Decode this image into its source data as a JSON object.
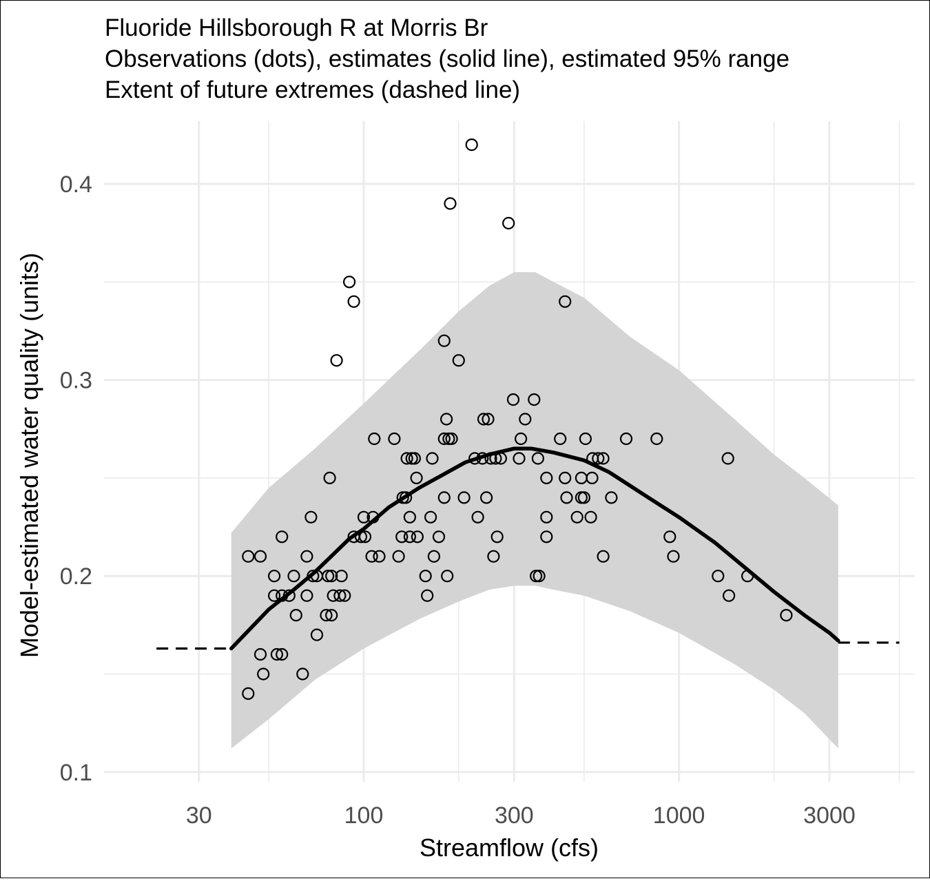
{
  "chart_data": {
    "type": "scatter",
    "title_lines": [
      "Fluoride Hillsborough R at Morris Br",
      "Observations (dots), estimates (solid line), estimated 95% range",
      "Extent of future extremes (dashed line)"
    ],
    "xlabel": "Streamflow (cfs)",
    "ylabel": "Model-estimated water quality (units)",
    "x_scale": "log10",
    "xlim": [
      15,
      5600
    ],
    "ylim": [
      0.095,
      0.432
    ],
    "x_ticks": [
      30,
      100,
      300,
      1000,
      3000
    ],
    "x_tick_labels": [
      "30",
      "100",
      "300",
      "1000",
      "3000"
    ],
    "x_minor_ticks": [
      50,
      200,
      500,
      2000,
      5000
    ],
    "y_ticks": [
      0.1,
      0.2,
      0.3,
      0.4
    ],
    "y_tick_labels": [
      "0.1",
      "0.2",
      "0.3",
      "0.4"
    ],
    "y_minor_ticks": [
      0.15,
      0.25,
      0.35
    ],
    "grid": true,
    "colors": {
      "observation": "#000000",
      "estimate_line": "#000000",
      "band": "#d4d4d4",
      "grid": "#ebebeb"
    },
    "estimate_curve": [
      {
        "x": 38,
        "y": 0.163
      },
      {
        "x": 50,
        "y": 0.183
      },
      {
        "x": 60,
        "y": 0.193
      },
      {
        "x": 70,
        "y": 0.202
      },
      {
        "x": 80,
        "y": 0.211
      },
      {
        "x": 90,
        "y": 0.219
      },
      {
        "x": 100,
        "y": 0.224
      },
      {
        "x": 120,
        "y": 0.235
      },
      {
        "x": 150,
        "y": 0.245
      },
      {
        "x": 180,
        "y": 0.252
      },
      {
        "x": 210,
        "y": 0.258
      },
      {
        "x": 250,
        "y": 0.262
      },
      {
        "x": 300,
        "y": 0.265
      },
      {
        "x": 340,
        "y": 0.265
      },
      {
        "x": 400,
        "y": 0.263
      },
      {
        "x": 500,
        "y": 0.259
      },
      {
        "x": 600,
        "y": 0.253
      },
      {
        "x": 800,
        "y": 0.24
      },
      {
        "x": 1000,
        "y": 0.23
      },
      {
        "x": 1300,
        "y": 0.217
      },
      {
        "x": 1600,
        "y": 0.205
      },
      {
        "x": 2000,
        "y": 0.192
      },
      {
        "x": 2500,
        "y": 0.18
      },
      {
        "x": 3000,
        "y": 0.171
      },
      {
        "x": 3200,
        "y": 0.167
      }
    ],
    "band_upper": [
      {
        "x": 38,
        "y": 0.222
      },
      {
        "x": 50,
        "y": 0.245
      },
      {
        "x": 70,
        "y": 0.265
      },
      {
        "x": 100,
        "y": 0.288
      },
      {
        "x": 150,
        "y": 0.315
      },
      {
        "x": 200,
        "y": 0.335
      },
      {
        "x": 250,
        "y": 0.348
      },
      {
        "x": 300,
        "y": 0.355
      },
      {
        "x": 350,
        "y": 0.355
      },
      {
        "x": 400,
        "y": 0.35
      },
      {
        "x": 500,
        "y": 0.342
      },
      {
        "x": 700,
        "y": 0.322
      },
      {
        "x": 1000,
        "y": 0.305
      },
      {
        "x": 1500,
        "y": 0.28
      },
      {
        "x": 2000,
        "y": 0.262
      },
      {
        "x": 2500,
        "y": 0.25
      },
      {
        "x": 3200,
        "y": 0.236
      }
    ],
    "band_lower": [
      {
        "x": 38,
        "y": 0.112
      },
      {
        "x": 50,
        "y": 0.127
      },
      {
        "x": 70,
        "y": 0.147
      },
      {
        "x": 100,
        "y": 0.163
      },
      {
        "x": 150,
        "y": 0.178
      },
      {
        "x": 200,
        "y": 0.187
      },
      {
        "x": 250,
        "y": 0.193
      },
      {
        "x": 300,
        "y": 0.195
      },
      {
        "x": 350,
        "y": 0.195
      },
      {
        "x": 400,
        "y": 0.193
      },
      {
        "x": 500,
        "y": 0.19
      },
      {
        "x": 700,
        "y": 0.182
      },
      {
        "x": 1000,
        "y": 0.171
      },
      {
        "x": 1500,
        "y": 0.155
      },
      {
        "x": 2000,
        "y": 0.142
      },
      {
        "x": 2500,
        "y": 0.13
      },
      {
        "x": 3200,
        "y": 0.112
      }
    ],
    "future_extremes_low": [
      {
        "x": 22,
        "y": 0.163
      },
      {
        "x": 38,
        "y": 0.163
      }
    ],
    "future_extremes_high": [
      {
        "x": 3200,
        "y": 0.166
      },
      {
        "x": 5000,
        "y": 0.166
      }
    ],
    "observations": [
      {
        "x": 220,
        "y": 0.42
      },
      {
        "x": 188,
        "y": 0.39
      },
      {
        "x": 288,
        "y": 0.38
      },
      {
        "x": 90,
        "y": 0.35
      },
      {
        "x": 93,
        "y": 0.34
      },
      {
        "x": 435,
        "y": 0.34
      },
      {
        "x": 82,
        "y": 0.31
      },
      {
        "x": 180,
        "y": 0.32
      },
      {
        "x": 200,
        "y": 0.31
      },
      {
        "x": 298,
        "y": 0.29
      },
      {
        "x": 347,
        "y": 0.29
      },
      {
        "x": 183,
        "y": 0.28
      },
      {
        "x": 240,
        "y": 0.28
      },
      {
        "x": 248,
        "y": 0.28
      },
      {
        "x": 325,
        "y": 0.28
      },
      {
        "x": 108,
        "y": 0.27
      },
      {
        "x": 125,
        "y": 0.27
      },
      {
        "x": 180,
        "y": 0.27
      },
      {
        "x": 186,
        "y": 0.27
      },
      {
        "x": 190,
        "y": 0.27
      },
      {
        "x": 315,
        "y": 0.27
      },
      {
        "x": 420,
        "y": 0.27
      },
      {
        "x": 505,
        "y": 0.27
      },
      {
        "x": 680,
        "y": 0.27
      },
      {
        "x": 850,
        "y": 0.27
      },
      {
        "x": 137,
        "y": 0.26
      },
      {
        "x": 142,
        "y": 0.26
      },
      {
        "x": 145,
        "y": 0.26
      },
      {
        "x": 165,
        "y": 0.26
      },
      {
        "x": 225,
        "y": 0.26
      },
      {
        "x": 238,
        "y": 0.26
      },
      {
        "x": 253,
        "y": 0.26
      },
      {
        "x": 262,
        "y": 0.26
      },
      {
        "x": 272,
        "y": 0.26
      },
      {
        "x": 311,
        "y": 0.26
      },
      {
        "x": 357,
        "y": 0.26
      },
      {
        "x": 532,
        "y": 0.26
      },
      {
        "x": 554,
        "y": 0.26
      },
      {
        "x": 575,
        "y": 0.26
      },
      {
        "x": 1430,
        "y": 0.26
      },
      {
        "x": 78,
        "y": 0.25
      },
      {
        "x": 147,
        "y": 0.25
      },
      {
        "x": 380,
        "y": 0.25
      },
      {
        "x": 435,
        "y": 0.25
      },
      {
        "x": 490,
        "y": 0.25
      },
      {
        "x": 530,
        "y": 0.25
      },
      {
        "x": 133,
        "y": 0.24
      },
      {
        "x": 136,
        "y": 0.24
      },
      {
        "x": 180,
        "y": 0.24
      },
      {
        "x": 208,
        "y": 0.24
      },
      {
        "x": 245,
        "y": 0.24
      },
      {
        "x": 440,
        "y": 0.24
      },
      {
        "x": 490,
        "y": 0.24
      },
      {
        "x": 500,
        "y": 0.24
      },
      {
        "x": 610,
        "y": 0.24
      },
      {
        "x": 68,
        "y": 0.23
      },
      {
        "x": 100,
        "y": 0.23
      },
      {
        "x": 107,
        "y": 0.23
      },
      {
        "x": 140,
        "y": 0.23
      },
      {
        "x": 163,
        "y": 0.23
      },
      {
        "x": 230,
        "y": 0.23
      },
      {
        "x": 380,
        "y": 0.23
      },
      {
        "x": 475,
        "y": 0.23
      },
      {
        "x": 525,
        "y": 0.23
      },
      {
        "x": 55,
        "y": 0.22
      },
      {
        "x": 93,
        "y": 0.22
      },
      {
        "x": 98,
        "y": 0.22
      },
      {
        "x": 101,
        "y": 0.22
      },
      {
        "x": 132,
        "y": 0.22
      },
      {
        "x": 140,
        "y": 0.22
      },
      {
        "x": 148,
        "y": 0.22
      },
      {
        "x": 173,
        "y": 0.22
      },
      {
        "x": 265,
        "y": 0.22
      },
      {
        "x": 380,
        "y": 0.22
      },
      {
        "x": 935,
        "y": 0.22
      },
      {
        "x": 43,
        "y": 0.21
      },
      {
        "x": 47,
        "y": 0.21
      },
      {
        "x": 66,
        "y": 0.21
      },
      {
        "x": 106,
        "y": 0.21
      },
      {
        "x": 112,
        "y": 0.21
      },
      {
        "x": 129,
        "y": 0.21
      },
      {
        "x": 167,
        "y": 0.21
      },
      {
        "x": 258,
        "y": 0.21
      },
      {
        "x": 575,
        "y": 0.21
      },
      {
        "x": 960,
        "y": 0.21
      },
      {
        "x": 52,
        "y": 0.2
      },
      {
        "x": 60,
        "y": 0.2
      },
      {
        "x": 69,
        "y": 0.2
      },
      {
        "x": 71,
        "y": 0.2
      },
      {
        "x": 77,
        "y": 0.2
      },
      {
        "x": 79,
        "y": 0.2
      },
      {
        "x": 85,
        "y": 0.2
      },
      {
        "x": 157,
        "y": 0.2
      },
      {
        "x": 184,
        "y": 0.2
      },
      {
        "x": 352,
        "y": 0.2
      },
      {
        "x": 360,
        "y": 0.2
      },
      {
        "x": 1330,
        "y": 0.2
      },
      {
        "x": 1650,
        "y": 0.2
      },
      {
        "x": 52,
        "y": 0.19
      },
      {
        "x": 55,
        "y": 0.19
      },
      {
        "x": 58,
        "y": 0.19
      },
      {
        "x": 66,
        "y": 0.19
      },
      {
        "x": 80,
        "y": 0.19
      },
      {
        "x": 84,
        "y": 0.19
      },
      {
        "x": 87,
        "y": 0.19
      },
      {
        "x": 159,
        "y": 0.19
      },
      {
        "x": 1440,
        "y": 0.19
      },
      {
        "x": 61,
        "y": 0.18
      },
      {
        "x": 76,
        "y": 0.18
      },
      {
        "x": 79,
        "y": 0.18
      },
      {
        "x": 2190,
        "y": 0.18
      },
      {
        "x": 71,
        "y": 0.17
      },
      {
        "x": 47,
        "y": 0.16
      },
      {
        "x": 53,
        "y": 0.16
      },
      {
        "x": 55,
        "y": 0.16
      },
      {
        "x": 48,
        "y": 0.15
      },
      {
        "x": 64,
        "y": 0.15
      },
      {
        "x": 43,
        "y": 0.14
      }
    ]
  }
}
